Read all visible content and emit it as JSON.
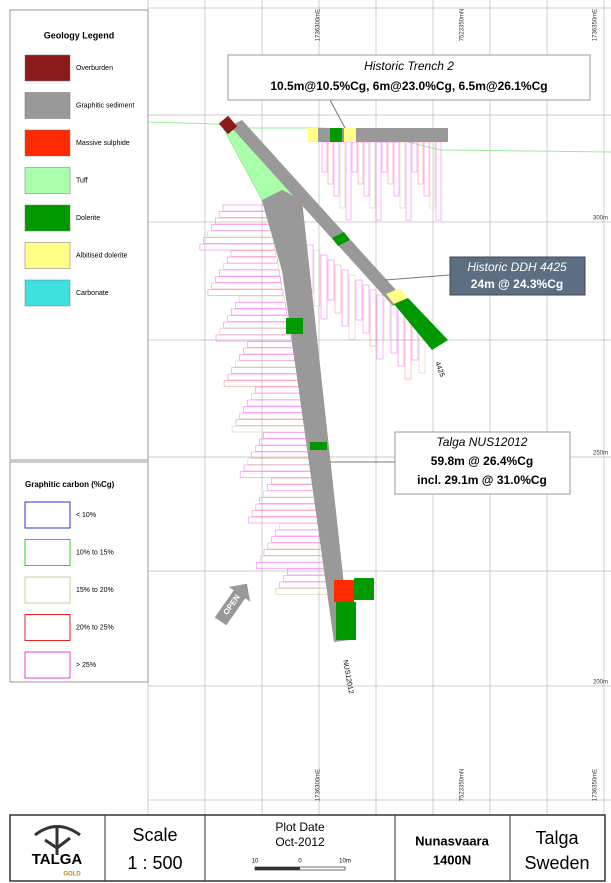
{
  "legend": {
    "title": "Geology Legend",
    "items": [
      "Overburden",
      "Graphitic sediment",
      "Massive sulphide",
      "Tuff",
      "Dolerite",
      "Albitised dolerite",
      "Carbonate"
    ]
  },
  "carbon_legend": {
    "title": "Graphitic carbon (%Cg)",
    "items": [
      "< 10%",
      "10% to 15%",
      "15% to 20%",
      "20% to 25%",
      "> 25%"
    ]
  },
  "grid_labels": {
    "top": [
      "1736300mE",
      "7523350mN",
      "1736350mE"
    ],
    "bottom": [
      "1736300mE",
      "7523350mN",
      "1736350mE"
    ],
    "right": [
      "300m",
      "250m",
      "200m"
    ]
  },
  "callouts": [
    {
      "title": "Historic Trench 2",
      "lines": [
        "10.5m@10.5%Cg, 6m@23.0%Cg, 6.5m@26.1%Cg"
      ]
    },
    {
      "title": "Historic DDH 4425",
      "lines": [
        "24m @ 24.3%Cg"
      ]
    },
    {
      "title": "Talga NUS12012",
      "lines": [
        "59.8m @ 26.4%Cg",
        "incl. 29.1m @ 31.0%Cg"
      ]
    }
  ],
  "holes": [
    "4425",
    "NUS12012"
  ],
  "open": "OPEN",
  "title_block": {
    "logo": "TALGA",
    "logo_sub": "GOLD",
    "scale_label": "Scale",
    "scale": "1 : 500",
    "plot_date_label": "Plot Date",
    "plot_date": "Oct-2012",
    "scale_bar": [
      "10",
      "0",
      "10m"
    ],
    "section": "Nunasvaara",
    "section_sub": "1400N",
    "company": "Talga",
    "country": "Sweden"
  }
}
